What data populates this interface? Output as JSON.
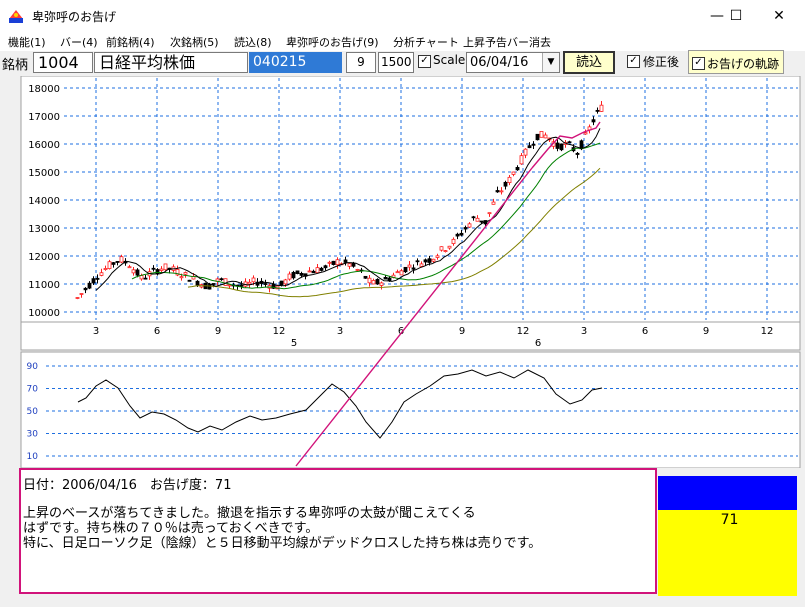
{
  "window": {
    "title": "卑弥呼のお告げ",
    "controls": {
      "minimize": "—",
      "maximize": "☐",
      "close": "✕"
    }
  },
  "menu": [
    "機能(1)",
    "バー(4)",
    "前銘柄(4)",
    "次銘柄(5)",
    "読込(8)",
    "卑弥呼のお告げ(9)",
    "分析チャート",
    "上昇予告バー消去"
  ],
  "toolbar": {
    "meigara_label": "銘柄",
    "code": "1004",
    "name": "日経平均株価",
    "start_date": "040215",
    "bars_value": "9",
    "count_value": "1500",
    "scale_label": "Scale",
    "scale_checked": true,
    "date_select": "06/04/16",
    "load_button": "読込",
    "adjusted_label": "修正後",
    "adjusted_checked": true,
    "oracle_track_label": "お告げの軌跡",
    "oracle_track_checked": true
  },
  "price_chart": {
    "y_ticks": [
      "18000",
      "17000",
      "16000",
      "15000",
      "14000",
      "13000",
      "12000",
      "11000",
      "10000"
    ],
    "x_ticks": [
      "3",
      "6",
      "9",
      "12",
      "3",
      "6",
      "9",
      "12",
      "3",
      "6",
      "9",
      "12"
    ],
    "years": [
      "5",
      "6"
    ],
    "colors": {
      "up": "#ff2020",
      "down": "#000000",
      "ma_short": "#000000",
      "ma_mid": "#008000",
      "ma_long": "#808000",
      "oracle_line": "#d1137a",
      "grid": "#1e6fe0"
    }
  },
  "oscillator": {
    "y_ticks": [
      "90",
      "70",
      "50",
      "30",
      "10"
    ]
  },
  "message": {
    "date_line": "日付：2006/04/16　お告げ度：71",
    "body": "上昇のベースが落ちてきました。撤退を指示する卑弥呼の太鼓が聞こえてくる\nはずです。持ち株の７０％は売っておくべきです。\n特に、日足ローソク足（陰線）と５日移動平均線がデッドクロスした持ち株は売りです。"
  },
  "gauge": {
    "value": "71",
    "top_color": "#0000ff",
    "bottom_color": "#ffff00"
  }
}
